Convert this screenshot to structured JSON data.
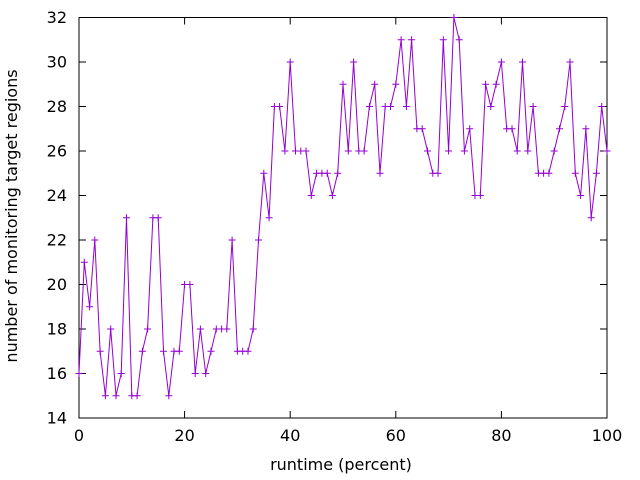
{
  "window": {
    "background": "#ffffff"
  },
  "chart_data": {
    "type": "line",
    "title": "",
    "xlabel": "runtime (percent)",
    "ylabel": "number of monitoring target regions",
    "xlim": [
      0,
      100
    ],
    "ylim": [
      14,
      32
    ],
    "x_ticks": [
      0,
      20,
      40,
      60,
      80,
      100
    ],
    "y_ticks": [
      14,
      16,
      18,
      20,
      22,
      24,
      26,
      28,
      30,
      32
    ],
    "grid": false,
    "legend": "none",
    "line_color": "#9400d3",
    "axis_color": "#000000",
    "text_color": "#000000",
    "marker": "plus",
    "x": [
      0,
      1,
      2,
      3,
      4,
      5,
      6,
      7,
      8,
      9,
      10,
      11,
      12,
      13,
      14,
      15,
      16,
      17,
      18,
      19,
      20,
      21,
      22,
      23,
      24,
      25,
      26,
      27,
      28,
      29,
      30,
      31,
      32,
      33,
      34,
      35,
      36,
      37,
      38,
      39,
      40,
      41,
      42,
      43,
      44,
      45,
      46,
      47,
      48,
      49,
      50,
      51,
      52,
      53,
      54,
      55,
      56,
      57,
      58,
      59,
      60,
      61,
      62,
      63,
      64,
      65,
      66,
      67,
      68,
      69,
      70,
      71,
      72,
      73,
      74,
      75,
      76,
      77,
      78,
      79,
      80,
      81,
      82,
      83,
      84,
      85,
      86,
      87,
      88,
      89,
      90,
      91,
      92,
      93,
      94,
      95,
      96,
      97,
      98,
      99,
      100
    ],
    "values": [
      16,
      21,
      19,
      22,
      17,
      15,
      18,
      15,
      16,
      23,
      15,
      15,
      17,
      18,
      23,
      23,
      17,
      15,
      17,
      17,
      20,
      20,
      16,
      18,
      16,
      17,
      18,
      18,
      18,
      22,
      17,
      17,
      17,
      18,
      22,
      25,
      23,
      28,
      28,
      26,
      30,
      26,
      26,
      26,
      24,
      25,
      25,
      25,
      24,
      25,
      29,
      26,
      30,
      26,
      26,
      28,
      29,
      25,
      28,
      28,
      29,
      31,
      28,
      31,
      27,
      27,
      26,
      25,
      25,
      31,
      26,
      32,
      31,
      26,
      27,
      24,
      24,
      29,
      28,
      29,
      30,
      27,
      27,
      26,
      30,
      26,
      28,
      25,
      25,
      25,
      26,
      27,
      28,
      30,
      25,
      24,
      27,
      23,
      25,
      28,
      26
    ]
  }
}
